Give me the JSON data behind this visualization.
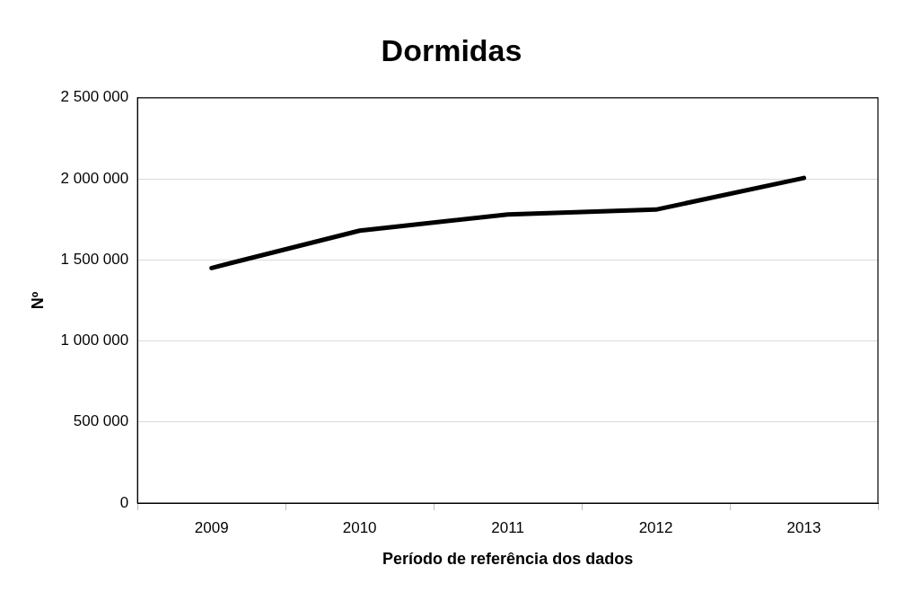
{
  "chart_data": {
    "type": "line",
    "title": "Dormidas",
    "xlabel": "Período de referência dos dados",
    "ylabel": "Nº",
    "categories": [
      "2009",
      "2010",
      "2011",
      "2012",
      "2013"
    ],
    "series": [
      {
        "color": "#000000",
        "values": [
          1450000,
          1680000,
          1780000,
          1810000,
          2005000
        ]
      }
    ],
    "ylim": [
      0,
      2500000
    ],
    "yticks": [
      {
        "value": 0,
        "label": "0"
      },
      {
        "value": 500000,
        "label": "500 000"
      },
      {
        "value": 1000000,
        "label": "1 000 000"
      },
      {
        "value": 1500000,
        "label": "1 500 000"
      },
      {
        "value": 2000000,
        "label": "2 000 000"
      },
      {
        "value": 2500000,
        "label": "2 500 000"
      }
    ],
    "grid": "y",
    "legend": false,
    "marker": "none",
    "line_style": "solid"
  }
}
